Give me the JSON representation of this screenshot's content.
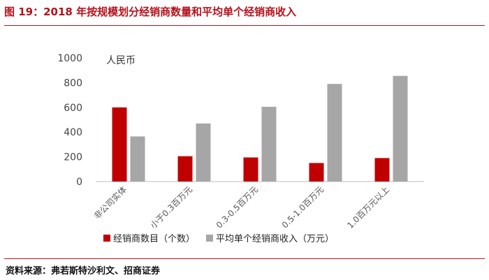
{
  "header": {
    "title": "图 19：2018 年按规模划分经销商数量和平均单个经销商收入"
  },
  "footer": {
    "source": "资料来源：弗若斯特沙利文、招商证券"
  },
  "chart_data": {
    "type": "bar",
    "title": "",
    "unit_label": "人民币",
    "categories": [
      "非公司实体",
      "小于0.3百万元",
      "0.3-0.5百万元",
      "0.5-1.0百万元",
      "1.0百万元以上"
    ],
    "series": [
      {
        "name": "经销商数目（个数）",
        "values": [
          600,
          205,
          195,
          150,
          190
        ],
        "color": "#c00000"
      },
      {
        "name": "平均单个经销商收入（万元）",
        "values": [
          365,
          470,
          605,
          790,
          855
        ],
        "color": "#a6a6a6"
      }
    ],
    "ylim": [
      0,
      1000
    ],
    "yticks": [
      0,
      200,
      400,
      600,
      800,
      1000
    ],
    "grid": false,
    "legend_position": "bottom"
  }
}
